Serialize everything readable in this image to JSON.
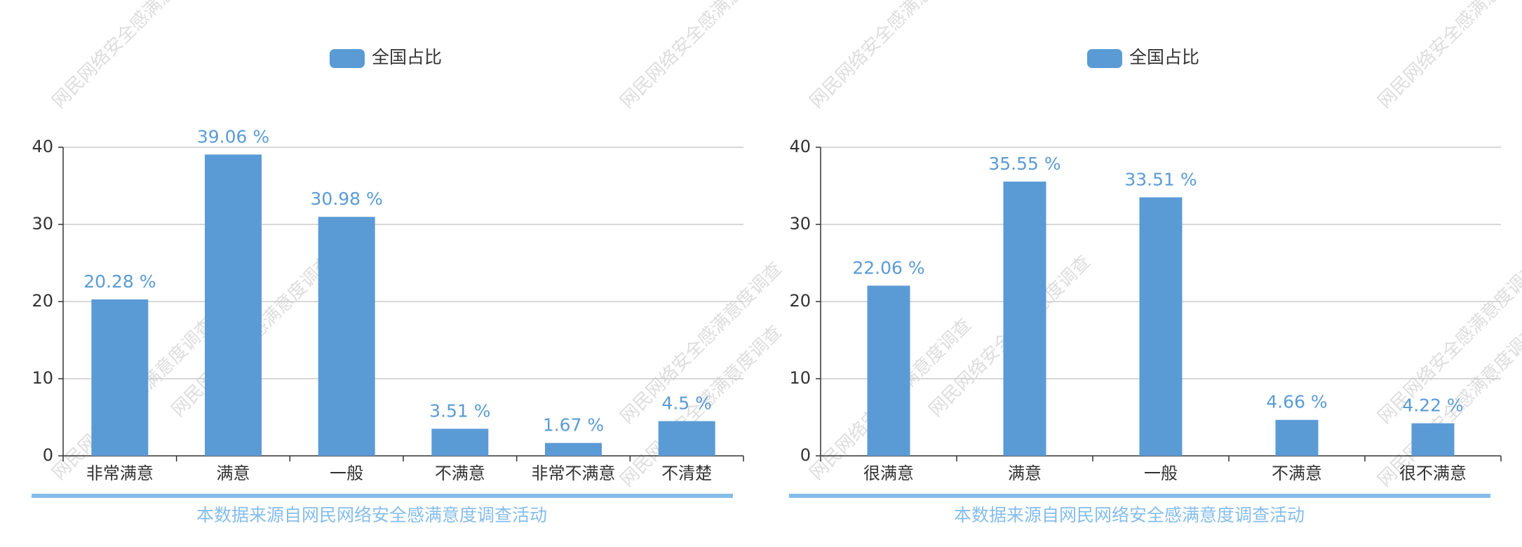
{
  "chart_data": [
    {
      "type": "bar",
      "legend": "全国占比",
      "color": "#5b9bd5",
      "categories": [
        "非常满意",
        "满意",
        "一般",
        "不满意",
        "非常不满意",
        "不清楚"
      ],
      "values": [
        20.28,
        39.06,
        30.98,
        3.51,
        1.67,
        4.5
      ],
      "value_labels": [
        "20.28 %",
        "39.06 %",
        "30.98 %",
        "3.51 %",
        "1.67 %",
        "4.5 %"
      ],
      "ylim": [
        0,
        40
      ],
      "yticks": [
        0,
        10,
        20,
        30,
        40
      ],
      "grid": true,
      "footer": "本数据来源自网民网络安全感满意度调查活动",
      "watermark": "网民网络安全感满意度调查"
    },
    {
      "type": "bar",
      "legend": "全国占比",
      "color": "#5b9bd5",
      "categories": [
        "很满意",
        "满意",
        "一般",
        "不满意",
        "很不满意"
      ],
      "values": [
        22.06,
        35.55,
        33.51,
        4.66,
        4.22
      ],
      "value_labels": [
        "22.06 %",
        "35.55 %",
        "33.51 %",
        "4.66 %",
        "4.22 %"
      ],
      "ylim": [
        0,
        40
      ],
      "yticks": [
        0,
        10,
        20,
        30,
        40
      ],
      "grid": true,
      "footer": "本数据来源自网民网络安全感满意度调查活动",
      "watermark": "网民网络安全感满意度调查"
    }
  ]
}
